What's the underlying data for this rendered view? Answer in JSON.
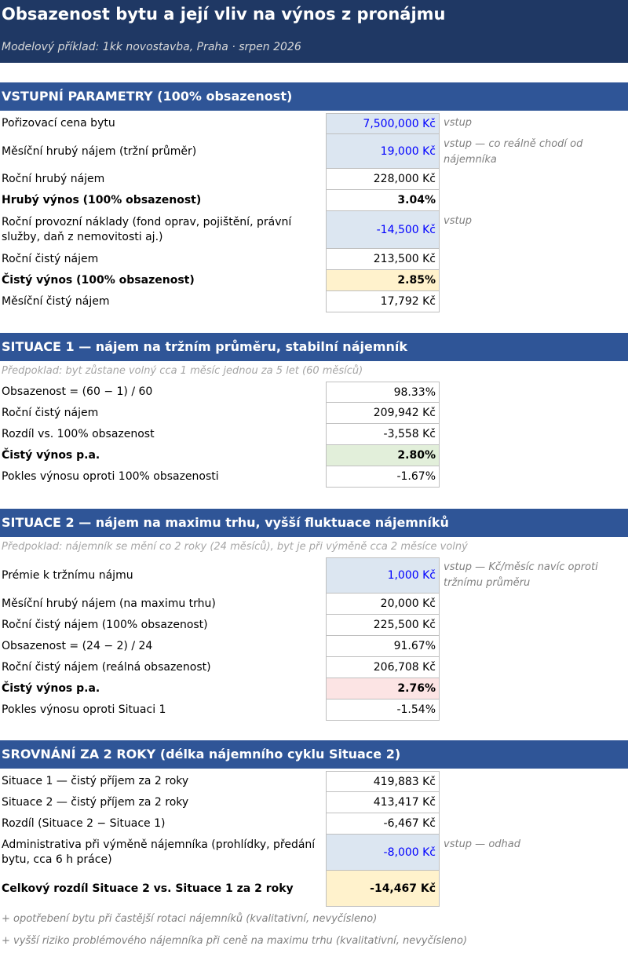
{
  "header": {
    "title": "Obsazenost bytu a její vliv na výnos z pronájmu",
    "subtitle": "Modelový příklad: 1kk novostavba, Praha  ·  srpen 2026"
  },
  "sections": [
    {
      "title": "VSTUPNÍ PARAMETRY (100% obsazenost)",
      "rows": [
        {
          "label": "Pořizovací cena bytu",
          "value": "7,500,000 Kč",
          "note": "vstup"
        },
        {
          "label": "Měsíční hrubý nájem (tržní průměr)",
          "value": "19,000 Kč",
          "note": "vstup — co reálně chodí od nájemníka"
        },
        {
          "label": "Roční hrubý nájem",
          "value": "228,000 Kč"
        },
        {
          "label": "Hrubý výnos (100% obsazenost)",
          "value": "3.04%"
        },
        {
          "label": "Roční provozní náklady (fond oprav, pojištění, právní služby, daň z nemovitosti aj.)",
          "value": "-14,500 Kč",
          "note": "vstup"
        },
        {
          "label": "Roční čistý nájem",
          "value": "213,500 Kč"
        },
        {
          "label": "Čistý výnos (100% obsazenost)",
          "value": "2.85%"
        },
        {
          "label": "Měsíční čistý nájem",
          "value": "17,792 Kč"
        }
      ]
    },
    {
      "title": "SITUACE 1 — nájem na tržním průměru, stabilní nájemník",
      "note": "Předpoklad: byt zůstane volný cca 1 měsíc jednou za 5 let (60 měsíců)",
      "rows": [
        {
          "label": "Obsazenost = (60 − 1) / 60",
          "value": "98.33%"
        },
        {
          "label": "Roční čistý nájem",
          "value": "209,942 Kč"
        },
        {
          "label": "Rozdíl vs. 100% obsazenost",
          "value": "-3,558 Kč"
        },
        {
          "label": "Čistý výnos p.a.",
          "value": "2.80%"
        },
        {
          "label": "Pokles výnosu oproti 100% obsazenosti",
          "value": "-1.67%"
        }
      ]
    },
    {
      "title": "SITUACE 2 — nájem na maximu trhu, vyšší fluktuace nájemníků",
      "note": "Předpoklad: nájemník se mění co 2 roky (24 měsíců), byt je při výměně cca 2 měsíce volný",
      "rows": [
        {
          "label": "Prémie k tržnímu nájmu",
          "value": "1,000 Kč",
          "note": "vstup — Kč/měsíc navíc oproti tržnímu průměru"
        },
        {
          "label": "Měsíční hrubý nájem (na maximu trhu)",
          "value": "20,000 Kč"
        },
        {
          "label": "Roční čistý nájem (100% obsazenost)",
          "value": "225,500 Kč"
        },
        {
          "label": "Obsazenost = (24 − 2) / 24",
          "value": "91.67%"
        },
        {
          "label": "Roční čistý nájem (reálná obsazenost)",
          "value": "206,708 Kč"
        },
        {
          "label": "Čistý výnos p.a.",
          "value": "2.76%"
        },
        {
          "label": "Pokles výnosu oproti Situaci 1",
          "value": "-1.54%"
        }
      ]
    },
    {
      "title": "SROVNÁNÍ ZA 2 ROKY (délka nájemního cyklu Situace 2)",
      "rows": [
        {
          "label": "Situace 1 — čistý příjem za 2 roky",
          "value": "419,883 Kč"
        },
        {
          "label": "Situace 2 — čistý příjem za 2 roky",
          "value": "413,417 Kč"
        },
        {
          "label": "Rozdíl (Situace 2 − Situace 1)",
          "value": "-6,467 Kč"
        },
        {
          "label": "Administrativa při výměně nájemníka (prohlídky, předání bytu, cca 6 h práce)",
          "value": "-8,000 Kč",
          "note": "vstup — odhad"
        },
        {
          "label": "Celkový rozdíl Situace 2 vs. Situace 1 za 2 roky",
          "value": "-14,467 Kč"
        }
      ]
    }
  ],
  "footnotes": [
    "+ opotřebení bytu při častější rotaci nájemníků (kvalitativní, nevyčísleno)",
    "+ vyšší riziko problémového nájemníka při ceně na maximu trhu (kvalitativní, nevyčísleno)"
  ]
}
